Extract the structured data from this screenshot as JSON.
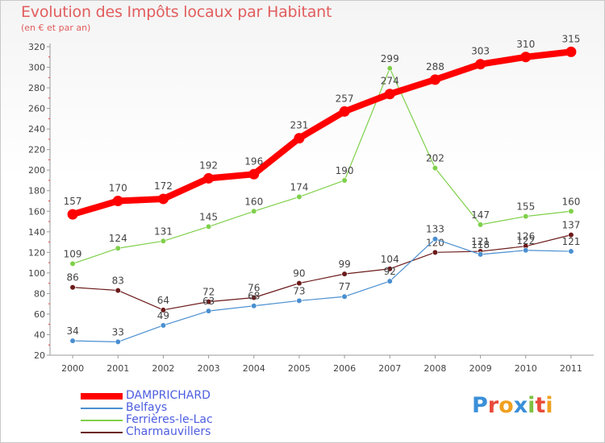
{
  "chart_data": {
    "type": "line",
    "title": "Evolution des Impôts locaux par Habitant",
    "subtitle": "(en € et par an)",
    "x": [
      "2000",
      "2001",
      "2002",
      "2003",
      "2004",
      "2005",
      "2006",
      "2007",
      "2008",
      "2009",
      "2010",
      "2011"
    ],
    "ylim": [
      20,
      320
    ],
    "yticks": [
      20,
      40,
      60,
      80,
      100,
      120,
      140,
      160,
      180,
      200,
      220,
      240,
      260,
      280,
      300,
      320
    ],
    "grid": false,
    "legend_position": "bottom-left",
    "series": [
      {
        "name": "Charmauvillers",
        "color": "#6b1a1a",
        "values": [
          86,
          83,
          64,
          72,
          76,
          90,
          99,
          104,
          120,
          121,
          126,
          137
        ]
      },
      {
        "name": "Belfays",
        "color": "#4a8fd0",
        "values": [
          34,
          33,
          49,
          63,
          68,
          73,
          77,
          92,
          133,
          118,
          122,
          121
        ]
      },
      {
        "name": "Ferrières-le-Lac",
        "color": "#7fd04a",
        "values": [
          109,
          124,
          131,
          145,
          160,
          174,
          190,
          299,
          202,
          147,
          155,
          160
        ]
      },
      {
        "name": "DAMPRICHARD",
        "color": "#ff0000",
        "values": [
          157,
          170,
          172,
          192,
          196,
          231,
          257,
          274,
          288,
          303,
          310,
          315
        ]
      }
    ]
  },
  "legend": {
    "items": [
      {
        "label": "DAMPRICHARD",
        "color": "#ff0000"
      },
      {
        "label": "Belfays",
        "color": "#4a8fd0"
      },
      {
        "label": "Ferrières-le-Lac",
        "color": "#7fd04a"
      },
      {
        "label": "Charmauvillers",
        "color": "#6b1a1a"
      }
    ]
  },
  "logo": {
    "letters": [
      "P",
      "r",
      "o",
      "x",
      "i",
      "t",
      "i"
    ],
    "colors": [
      "#3a8fd8",
      "#e84b3a",
      "#f0a020",
      "#3a8fd8",
      "#7fc040",
      "#e84b3a",
      "#f0a020"
    ]
  }
}
